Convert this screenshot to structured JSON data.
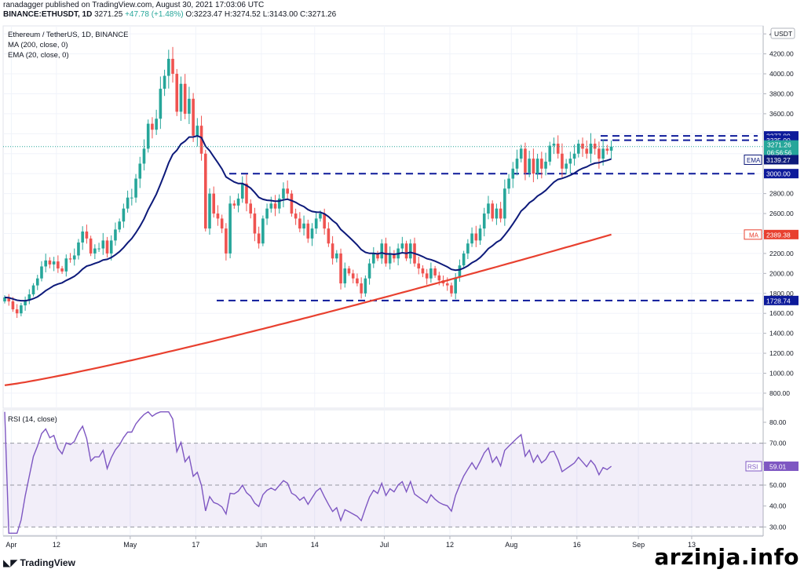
{
  "header": {
    "publisher": "ranadagger published on TradingView.com, August 30, 2021 17:03:06 UTC",
    "symbol": "BINANCE:ETHUSDT, 1D",
    "price": "3271.25",
    "change": "+47.78 (+1.48%)",
    "ohlc": "O:3223.47 H:3274.52 L:3143.00 C:3271.26"
  },
  "legend": {
    "title": "Ethereum / TetherUS, 1D, BINANCE",
    "ma": "MA (200, close, 0)",
    "ema": "EMA (20, close, 0)"
  },
  "rsi_legend": "RSI (14, close)",
  "branding": {
    "tradingview": "TradingView",
    "watermark": "arzinja.info"
  },
  "chart_data": [
    {
      "type": "candlestick",
      "currency_label": "USDT",
      "y_ticks": [
        800,
        1000,
        1200,
        1400,
        1600,
        1800,
        2000,
        2200,
        2400,
        2600,
        2800,
        3000,
        3200,
        3400,
        3600,
        3800,
        4000,
        4200,
        4400
      ],
      "ylim": [
        650,
        4480
      ],
      "x_ticks": [
        "Apr",
        "12",
        "May",
        "17",
        "Jun",
        "14",
        "Jul",
        "12",
        "Aug",
        "16",
        "Sep",
        "13"
      ],
      "x_tick_days": [
        2,
        13,
        31,
        47,
        63,
        76,
        93,
        109,
        124,
        140,
        155,
        168
      ],
      "horizontal_levels": [
        {
          "label": "3377.89",
          "value": 3377.89,
          "style": "dashed",
          "color": "#0d1a9a"
        },
        {
          "label": "3335.00",
          "value": 3335.0,
          "style": "dashed",
          "color": "#0d1a9a"
        },
        {
          "label": "3000.00",
          "value": 3000.0,
          "style": "dashed",
          "color": "#0d1a9a"
        },
        {
          "label": "1728.74",
          "value": 1728.74,
          "style": "dashed",
          "color": "#0d1a9a"
        }
      ],
      "price_badge": {
        "label": "3271.26",
        "sublabel": "06:56:56",
        "value": 3271.26,
        "color": "#26a69a"
      },
      "ema_badge": {
        "label": "EMA",
        "value_label": "3139.27",
        "value": 3139.27,
        "color": "#0d1a7a"
      },
      "ma_badge": {
        "label": "MA",
        "value_label": "2389.38",
        "value": 2389.38,
        "color": "#e8402f"
      },
      "closes": [
        1760,
        1720,
        1640,
        1600,
        1680,
        1730,
        1790,
        1880,
        1950,
        2070,
        2130,
        2090,
        2120,
        2050,
        2020,
        2150,
        2140,
        2180,
        2310,
        2420,
        2350,
        2200,
        2250,
        2250,
        2330,
        2200,
        2330,
        2440,
        2520,
        2650,
        2760,
        2760,
        2950,
        3100,
        3250,
        3500,
        3440,
        3550,
        3850,
        3980,
        4150,
        4000,
        3620,
        3900,
        3600,
        3750,
        3380,
        3480,
        3200,
        2450,
        2800,
        2600,
        2550,
        2450,
        2200,
        2700,
        2680,
        2750,
        2900,
        2700,
        2600,
        2400,
        2300,
        2550,
        2650,
        2700,
        2650,
        2750,
        2850,
        2800,
        2600,
        2550,
        2450,
        2500,
        2350,
        2450,
        2550,
        2600,
        2450,
        2300,
        2150,
        2200,
        1900,
        2050,
        2000,
        1950,
        1900,
        1800,
        1950,
        2100,
        2200,
        2150,
        2300,
        2100,
        2200,
        2150,
        2250,
        2300,
        2150,
        2300,
        2100,
        2050,
        2000,
        1950,
        2050,
        1980,
        1930,
        1900,
        1880,
        1800,
        1960,
        2080,
        2200,
        2300,
        2400,
        2330,
        2450,
        2600,
        2700,
        2550,
        2650,
        2550,
        2850,
        2950,
        3050,
        3150,
        3250,
        3010,
        3150,
        3000,
        3150,
        3050,
        3120,
        3280,
        3300,
        3200,
        3050,
        3100,
        3150,
        3200,
        3300,
        3250,
        3200,
        3300,
        3250,
        3150,
        3250,
        3230,
        3271
      ]
    },
    {
      "type": "line",
      "name": "RSI (14, close)",
      "y_ticks": [
        30,
        40,
        50,
        60,
        70,
        80
      ],
      "ylim": [
        26,
        86
      ],
      "band": [
        30,
        70
      ],
      "rsi_badge": {
        "label": "RSI",
        "value_label": "59.01",
        "value": 59.01,
        "color": "#7e57c2"
      }
    }
  ]
}
